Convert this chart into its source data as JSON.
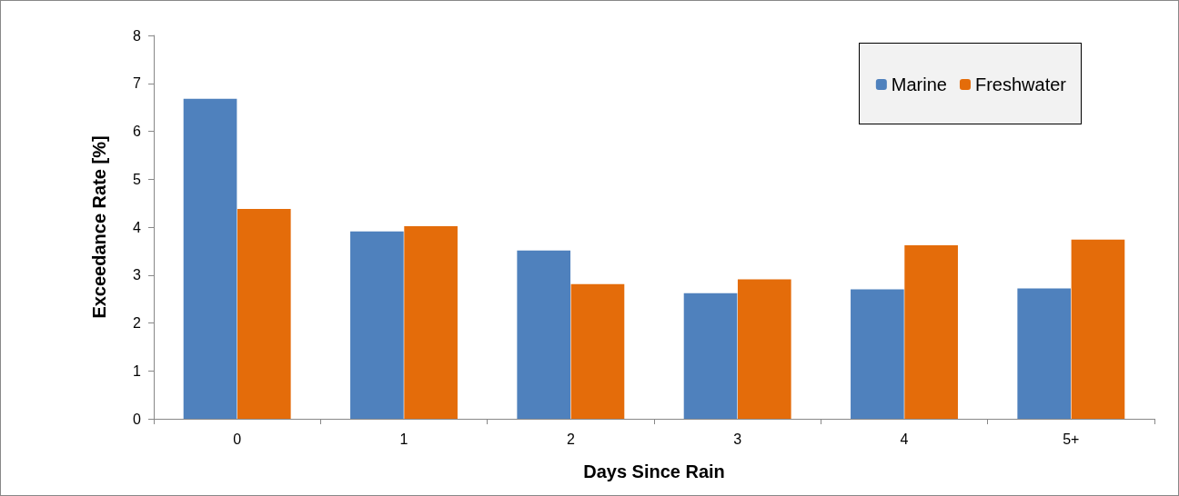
{
  "chart_data": {
    "type": "bar",
    "xlabel": "Days Since Rain",
    "ylabel": "Exceedance Rate [%]",
    "categories": [
      "0",
      "1",
      "2",
      "3",
      "4",
      "5+"
    ],
    "series": [
      {
        "name": "Marine",
        "color": "#4f81bd",
        "values": [
          6.68,
          3.91,
          3.51,
          2.62,
          2.7,
          2.72
        ]
      },
      {
        "name": "Freshwater",
        "color": "#e46c0a",
        "values": [
          4.38,
          4.02,
          2.81,
          2.91,
          3.62,
          3.74
        ]
      }
    ],
    "ylim": [
      0,
      8
    ],
    "yticks": [
      0,
      1,
      2,
      3,
      4,
      5,
      6,
      7,
      8
    ],
    "grid": false,
    "legend": "top right"
  }
}
